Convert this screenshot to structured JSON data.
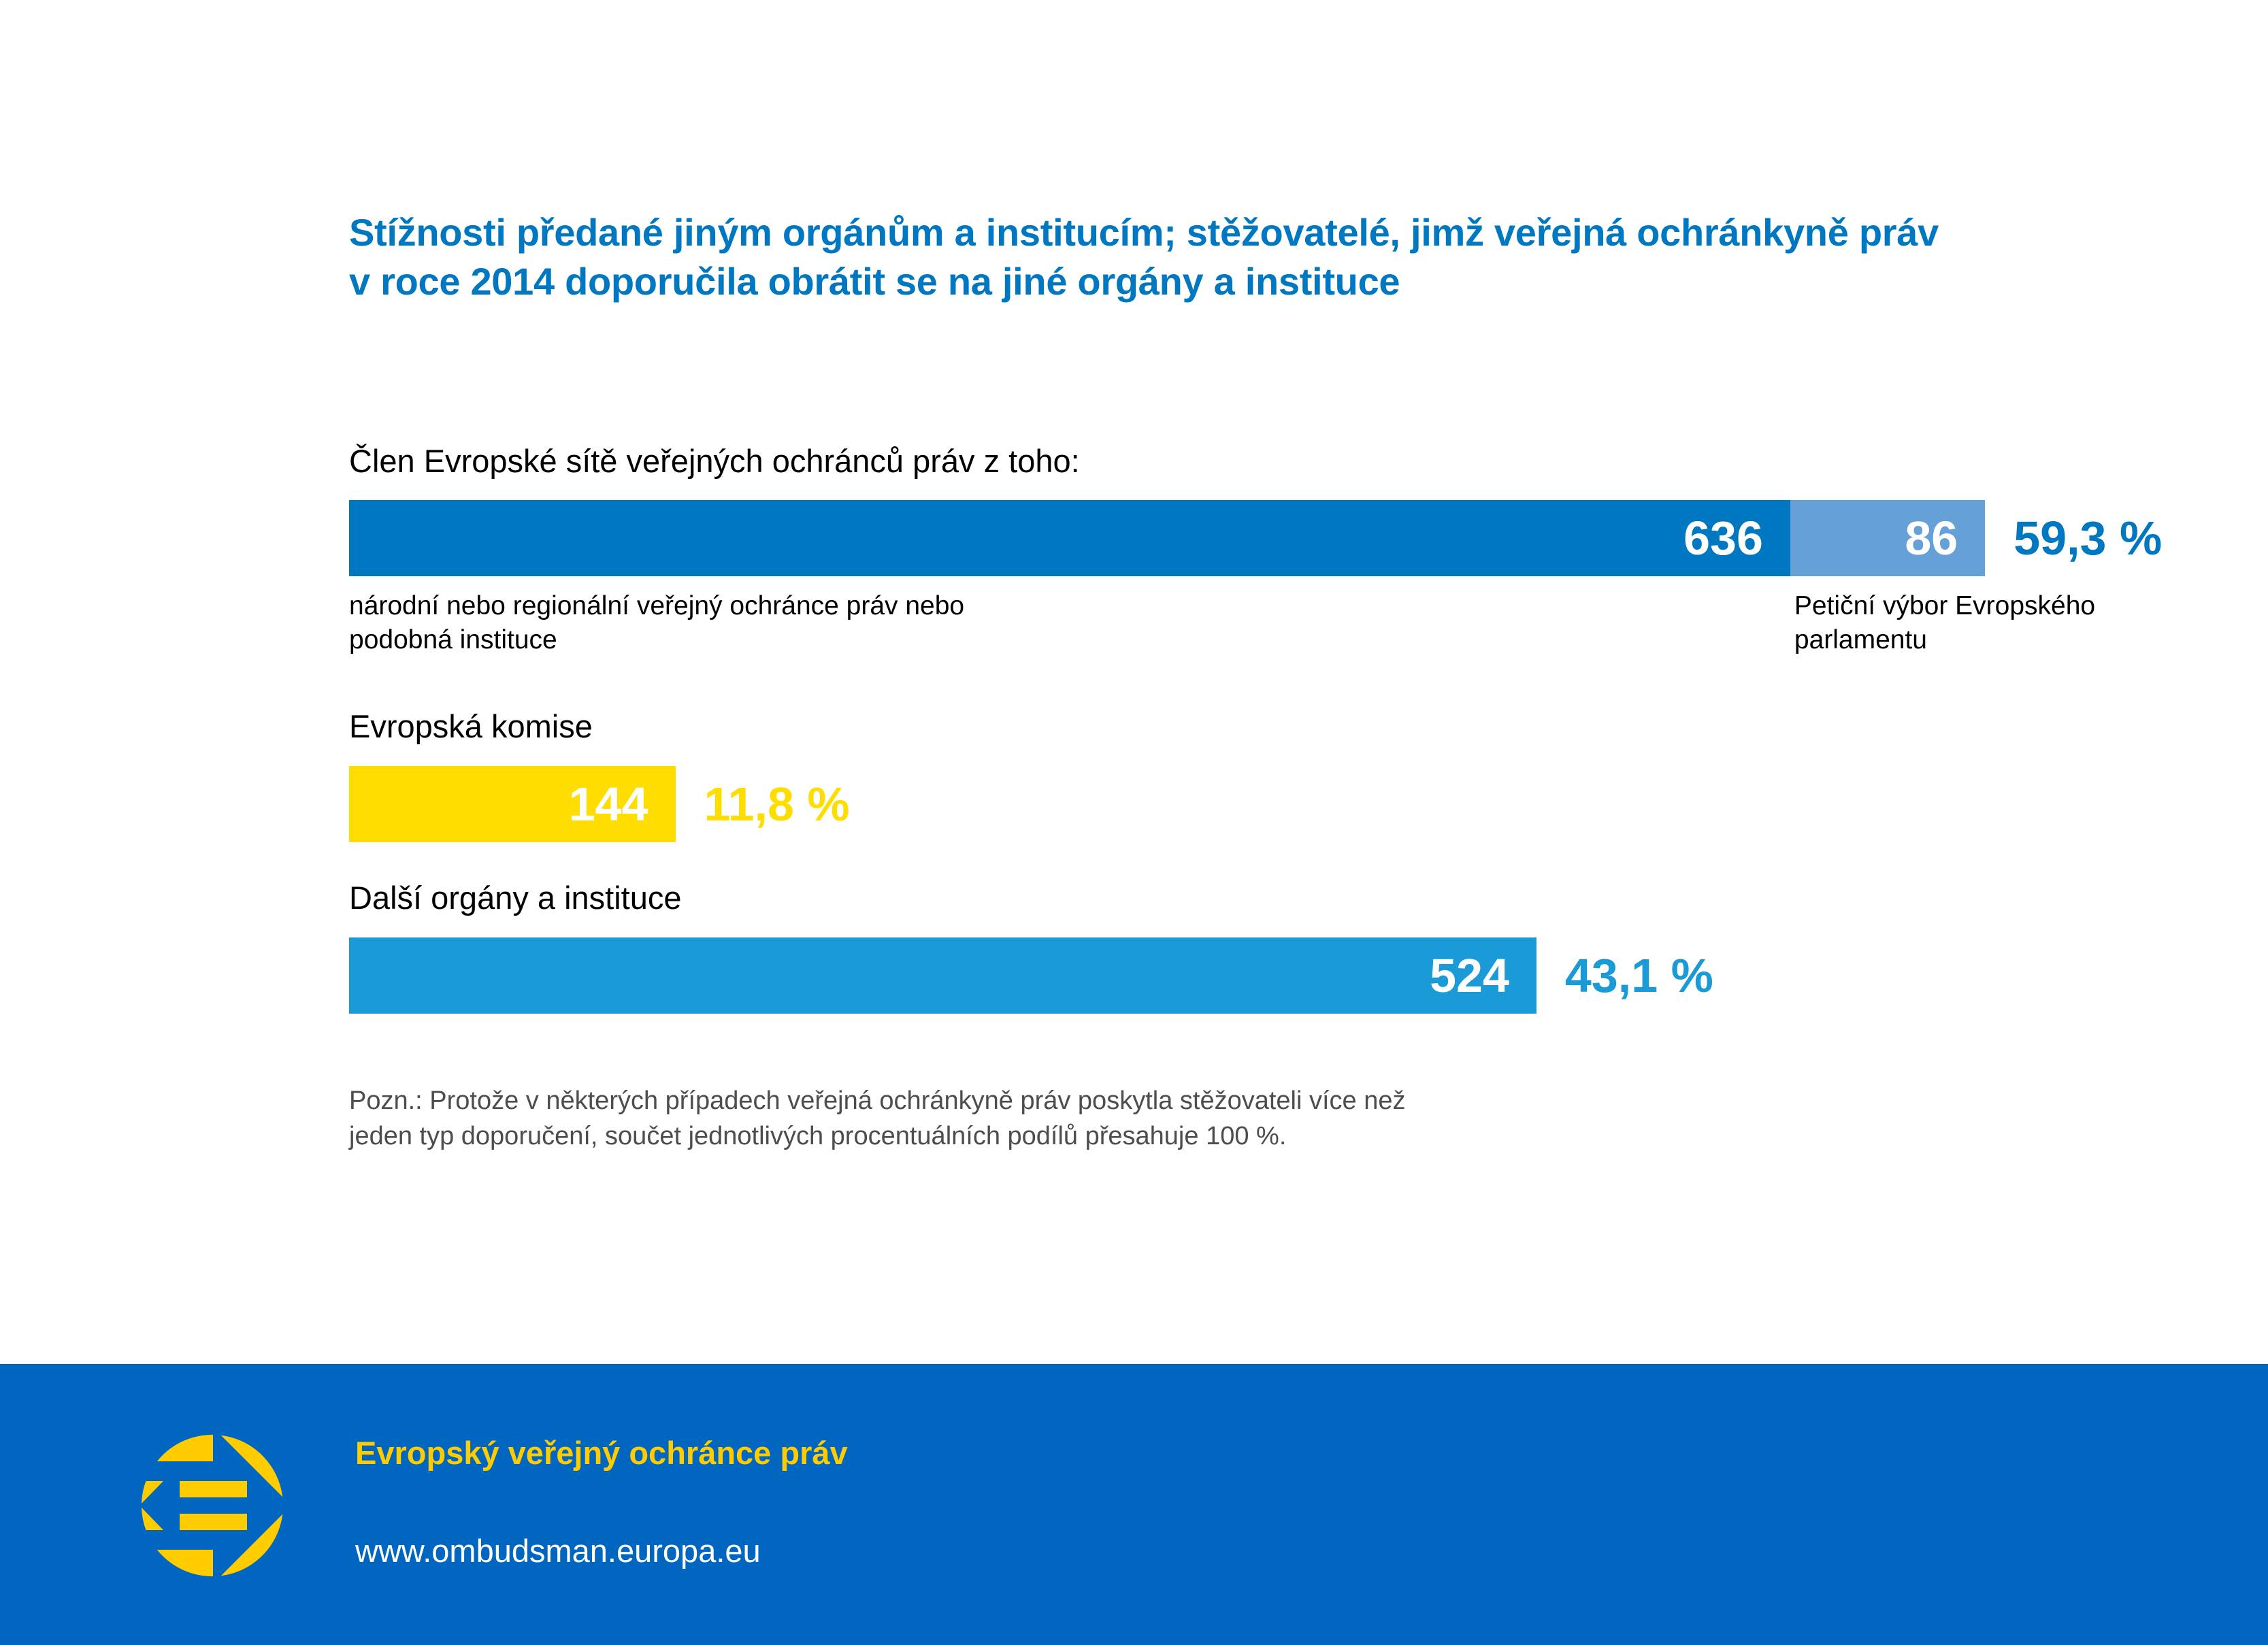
{
  "title": {
    "line1": "Stížnosti předané jiným orgánům a institucím; stěžovatelé, jimž veřejná ochránkyně práv",
    "line2": "v roce 2014 doporučila obrátit se na jiné orgány a instituce"
  },
  "colors": {
    "title": "#0078C1",
    "dark_blue": "#0078C1",
    "light_blue": "#65A1D6",
    "yellow": "#FFDD00",
    "cyan": "#1A9BD7",
    "footer_bg": "#0066BF",
    "footer_yellow": "#FFCC00"
  },
  "chart_data": {
    "type": "bar",
    "orientation": "horizontal",
    "title": "Stížnosti předané jiným orgánům a institucím; stěžovatelé, jimž veřejná ochránkyně práv v roce 2014 doporučila obrátit se na jiné orgány a instituce",
    "rows": [
      {
        "label": "Člen Evropské sítě veřejných ochránců práv z toho:",
        "percent_label": "59,3 %",
        "percent": 59.3,
        "percent_color": "#0078C1",
        "segments": [
          {
            "name": "národní nebo regionální veřejný ochránce práv nebo podobná instituce",
            "name_lines": [
              "národní nebo regionální veřejný ochránce práv nebo",
              "podobná instituce"
            ],
            "value": 636,
            "value_label": "636",
            "color": "#0078C1"
          },
          {
            "name": "Petiční výbor Evropského parlamentu",
            "name_lines": [
              "Petiční výbor Evropského",
              "parlamentu"
            ],
            "value": 86,
            "value_label": "86",
            "color": "#65A1D6"
          }
        ]
      },
      {
        "label": "Evropská komise",
        "percent_label": "11,8 %",
        "percent": 11.8,
        "percent_color": "#FFDD00",
        "segments": [
          {
            "name": "Evropská komise",
            "value": 144,
            "value_label": "144",
            "color": "#FFDD00"
          }
        ]
      },
      {
        "label": "Další orgány a instituce",
        "percent_label": "43,1 %",
        "percent": 43.1,
        "percent_color": "#1A9BD7",
        "segments": [
          {
            "name": "Další orgány a instituce",
            "value": 524,
            "value_label": "524",
            "color": "#1A9BD7"
          }
        ]
      }
    ],
    "xlabel": "",
    "ylabel": "",
    "grid": false,
    "legend": "none"
  },
  "note": {
    "line1": "Pozn.: Protože v některých případech veřejná ochránkyně práv poskytla stěžovateli více než",
    "line2": "jeden typ doporučení, součet jednotlivých procentuálních podílů přesahuje 100 %."
  },
  "footer": {
    "logo_icon": "european-ombudsman-logo-icon",
    "title": "Evropský veřejný ochránce práv",
    "url": "www.ombudsman.europa.eu"
  }
}
